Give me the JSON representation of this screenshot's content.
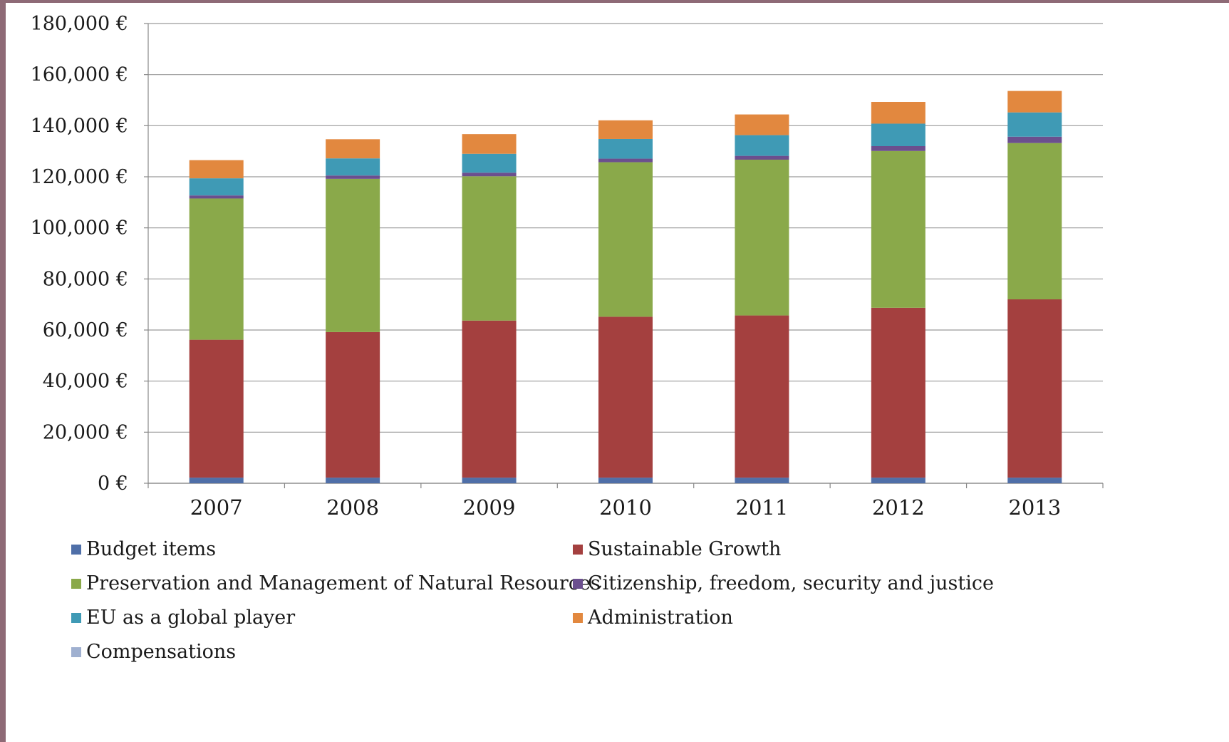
{
  "chart_data": {
    "type": "bar",
    "stacked": true,
    "title": "",
    "xlabel": "",
    "ylabel": "",
    "ylim": [
      0,
      180000
    ],
    "y_ticks": [
      "0 €",
      "20,000 €",
      "40,000 €",
      "60,000 €",
      "80,000 €",
      "100,000 €",
      "120,000 €",
      "140,000 €",
      "160,000 €",
      "180,000 €"
    ],
    "grid": true,
    "legend_position": "bottom",
    "categories": [
      "2007",
      "2008",
      "2009",
      "2010",
      "2011",
      "2012",
      "2013"
    ],
    "series": [
      {
        "name": "Budget items",
        "color": "#4f6fa8",
        "values": [
          2200,
          2200,
          2200,
          2200,
          2200,
          2200,
          2200
        ]
      },
      {
        "name": "Sustainable Growth",
        "color": "#a4403f",
        "values": [
          54000,
          57000,
          61500,
          63000,
          63500,
          66500,
          69800
        ]
      },
      {
        "name": "Preservation and Management of Natural Resources",
        "color": "#8aa94a",
        "values": [
          55300,
          60000,
          56500,
          60500,
          61000,
          61400,
          61200
        ]
      },
      {
        "name": "Citizenship, freedom, security and justice",
        "color": "#6b4f8e",
        "values": [
          1200,
          1300,
          1400,
          1400,
          1500,
          1900,
          2500
        ]
      },
      {
        "name": "EU as a global player",
        "color": "#3f9ab5",
        "values": [
          6700,
          6700,
          7400,
          7700,
          8100,
          8800,
          9500
        ]
      },
      {
        "name": "Administration",
        "color": "#e2883f",
        "values": [
          7100,
          7500,
          7700,
          7300,
          8100,
          8500,
          8400
        ]
      },
      {
        "name": "Compensations",
        "color": "#9fb0d0",
        "values": [
          0,
          0,
          0,
          0,
          0,
          0,
          0
        ]
      }
    ]
  }
}
